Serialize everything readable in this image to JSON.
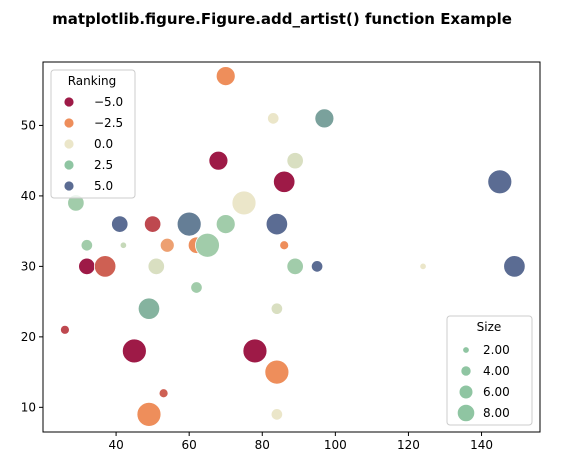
{
  "chart_data": {
    "type": "scatter",
    "title": "matplotlib.figure.Figure.add_artist() function Example",
    "xlabel": "",
    "ylabel": "",
    "xlim": [
      20,
      156
    ],
    "ylim": [
      6.5,
      59
    ],
    "xticks": [
      "40",
      "60",
      "80",
      "100",
      "120",
      "140"
    ],
    "yticks": [
      "10",
      "20",
      "30",
      "40",
      "50"
    ],
    "xtick_values": [
      40,
      60,
      80,
      100,
      120,
      140
    ],
    "ytick_values": [
      10,
      20,
      30,
      40,
      50
    ],
    "hue_legend": {
      "title": "Ranking",
      "placement": "upper-left",
      "entries": [
        {
          "label": "−5.0",
          "value": -5.0
        },
        {
          "label": "−2.5",
          "value": -2.5
        },
        {
          "label": "0.0",
          "value": 0.0
        },
        {
          "label": "2.5",
          "value": 2.5
        },
        {
          "label": "5.0",
          "value": 5.0
        }
      ]
    },
    "size_legend": {
      "title": "Size",
      "placement": "lower-right",
      "entries": [
        {
          "label": "2.00",
          "value": 2
        },
        {
          "label": "4.00",
          "value": 4
        },
        {
          "label": "6.00",
          "value": 6
        },
        {
          "label": "8.00",
          "value": 8
        }
      ]
    },
    "points": [
      {
        "x": 70,
        "y": 57,
        "size": 6,
        "rank": -2.5
      },
      {
        "x": 83,
        "y": 51,
        "size": 3,
        "rank": 0
      },
      {
        "x": 97,
        "y": 51,
        "size": 6,
        "rank": 3.5
      },
      {
        "x": 89,
        "y": 45,
        "size": 5,
        "rank": 0.5
      },
      {
        "x": 68,
        "y": 45,
        "size": 6,
        "rank": -5
      },
      {
        "x": 86,
        "y": 42,
        "size": 7,
        "rank": -5
      },
      {
        "x": 145,
        "y": 42,
        "size": 8,
        "rank": 5
      },
      {
        "x": 29,
        "y": 39,
        "size": 5,
        "rank": 2
      },
      {
        "x": 75,
        "y": 39,
        "size": 8,
        "rank": 0
      },
      {
        "x": 41,
        "y": 36,
        "size": 5,
        "rank": 5
      },
      {
        "x": 50,
        "y": 36,
        "size": 5,
        "rank": -4
      },
      {
        "x": 60,
        "y": 36,
        "size": 8,
        "rank": 4.5
      },
      {
        "x": 70,
        "y": 36,
        "size": 6,
        "rank": 2
      },
      {
        "x": 84,
        "y": 36,
        "size": 7,
        "rank": 5
      },
      {
        "x": 32,
        "y": 33,
        "size": 3,
        "rank": 2
      },
      {
        "x": 42,
        "y": 33,
        "size": 1,
        "rank": 1
      },
      {
        "x": 54,
        "y": 33,
        "size": 4,
        "rank": -2
      },
      {
        "x": 62,
        "y": 33,
        "size": 5,
        "rank": -2.5
      },
      {
        "x": 65,
        "y": 33,
        "size": 8,
        "rank": 2
      },
      {
        "x": 86,
        "y": 33,
        "size": 2,
        "rank": -2.5
      },
      {
        "x": 32,
        "y": 30,
        "size": 5,
        "rank": -5
      },
      {
        "x": 37,
        "y": 30,
        "size": 7,
        "rank": -3.5
      },
      {
        "x": 51,
        "y": 30,
        "size": 5,
        "rank": 0.5
      },
      {
        "x": 89,
        "y": 30,
        "size": 5,
        "rank": 2
      },
      {
        "x": 95,
        "y": 30,
        "size": 3,
        "rank": 5
      },
      {
        "x": 124,
        "y": 30,
        "size": 1,
        "rank": 0
      },
      {
        "x": 149,
        "y": 30,
        "size": 7,
        "rank": 5
      },
      {
        "x": 62,
        "y": 27,
        "size": 3,
        "rank": 2
      },
      {
        "x": 49,
        "y": 24,
        "size": 7,
        "rank": 3
      },
      {
        "x": 84,
        "y": 24,
        "size": 3,
        "rank": 0.5
      },
      {
        "x": 26,
        "y": 21,
        "size": 2,
        "rank": -4
      },
      {
        "x": 45,
        "y": 18,
        "size": 8,
        "rank": -5
      },
      {
        "x": 78,
        "y": 18,
        "size": 8,
        "rank": -5
      },
      {
        "x": 84,
        "y": 15,
        "size": 8,
        "rank": -2.5
      },
      {
        "x": 53,
        "y": 12,
        "size": 2,
        "rank": -3.5
      },
      {
        "x": 49,
        "y": 9,
        "size": 8,
        "rank": -2.5
      },
      {
        "x": 84,
        "y": 9,
        "size": 3,
        "rank": 0
      }
    ],
    "grid": false
  },
  "palette": {
    "-5": "#9e1a47",
    "-2.5": "#ee8e5b",
    "0": "#ebe6c9",
    "2.5": "#8fc5a2",
    "5": "#5b6c93"
  }
}
